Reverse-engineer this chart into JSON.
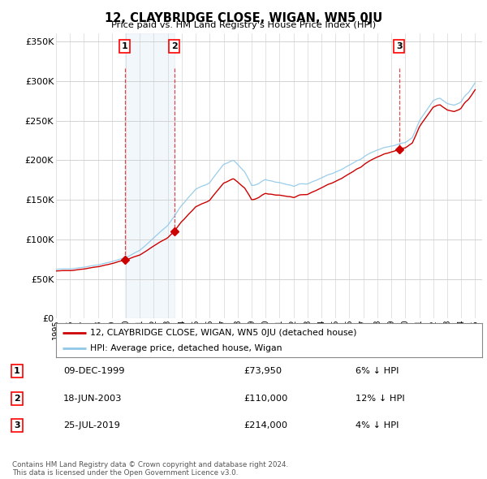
{
  "title": "12, CLAYBRIDGE CLOSE, WIGAN, WN5 0JU",
  "subtitle": "Price paid vs. HM Land Registry's House Price Index (HPI)",
  "ylabel_ticks": [
    "£0",
    "£50K",
    "£100K",
    "£150K",
    "£200K",
    "£250K",
    "£300K",
    "£350K"
  ],
  "ylim": [
    0,
    360000
  ],
  "xlim_start": 1995.0,
  "xlim_end": 2025.5,
  "transactions": [
    {
      "label": "1",
      "year": 1999.92,
      "price": 73950
    },
    {
      "label": "2",
      "year": 2003.46,
      "price": 110000
    },
    {
      "label": "3",
      "year": 2019.56,
      "price": 214000
    }
  ],
  "table_rows": [
    {
      "num": "1",
      "date": "09-DEC-1999",
      "price": "£73,950",
      "note": "6% ↓ HPI"
    },
    {
      "num": "2",
      "date": "18-JUN-2003",
      "price": "£110,000",
      "note": "12% ↓ HPI"
    },
    {
      "num": "3",
      "date": "25-JUL-2019",
      "price": "£214,000",
      "note": "4% ↓ HPI"
    }
  ],
  "legend_entries": [
    "12, CLAYBRIDGE CLOSE, WIGAN, WN5 0JU (detached house)",
    "HPI: Average price, detached house, Wigan"
  ],
  "footer": "Contains HM Land Registry data © Crown copyright and database right 2024.\nThis data is licensed under the Open Government Licence v3.0.",
  "hpi_color": "#8fc8e8",
  "price_color": "#cc0000",
  "background_color": "#ffffff",
  "grid_color": "#cccccc",
  "shade_color": "#ddeeff"
}
